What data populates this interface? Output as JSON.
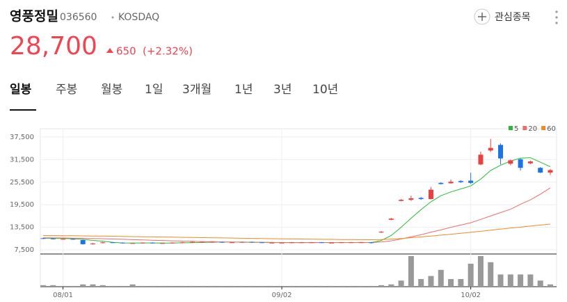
{
  "header": {
    "name": "영풍정밀",
    "code": "036560",
    "market": "KOSDAQ",
    "watch_button": "관심종목",
    "price": "28,700",
    "change": "650",
    "change_rate": "(+2.32%)"
  },
  "tabs": [
    "일봉",
    "주봉",
    "월봉",
    "1일",
    "3개월",
    "1년",
    "3년",
    "10년"
  ],
  "active_tab": 0,
  "chart_data": {
    "type": "candlestick",
    "up_color": "#e8413e",
    "down_color": "#1a73e8",
    "volume_color": "#999999",
    "grid": true,
    "categories": [
      null,
      null,
      "08/01",
      null,
      null,
      null,
      null,
      null,
      null,
      null,
      null,
      null,
      null,
      null,
      null,
      null,
      null,
      null,
      null,
      null,
      null,
      null,
      null,
      null,
      "09/02",
      null,
      null,
      null,
      null,
      null,
      null,
      null,
      null,
      null,
      null,
      null,
      null,
      null,
      null,
      null,
      null,
      null,
      null,
      "10/02",
      null,
      null,
      null,
      null,
      null,
      null,
      null,
      null
    ],
    "open": [
      10600,
      10500,
      10400,
      10400,
      10100,
      9000,
      9300,
      9500,
      9400,
      9300,
      9300,
      9400,
      9300,
      9300,
      9400,
      9500,
      9600,
      9600,
      9600,
      9500,
      9500,
      9600,
      9500,
      9400,
      9400,
      9400,
      9500,
      9500,
      9500,
      9400,
      9400,
      9500,
      9500,
      9500,
      12100,
      15500,
      20500,
      20800,
      21300,
      21000,
      25300,
      25200,
      25800,
      25900,
      30200,
      33900,
      35400,
      30400,
      31600,
      30500,
      29300,
      28050
    ],
    "high": [
      10700,
      10600,
      10500,
      10500,
      10200,
      9300,
      9600,
      9600,
      9500,
      9400,
      9500,
      9500,
      9400,
      9500,
      9600,
      9700,
      9700,
      9700,
      9700,
      9600,
      9700,
      9700,
      9600,
      9500,
      9500,
      9600,
      9600,
      9600,
      9600,
      9500,
      9600,
      9600,
      9600,
      9600,
      12500,
      16000,
      21000,
      21900,
      21600,
      24200,
      25500,
      26200,
      26000,
      28000,
      33600,
      37000,
      35800,
      31500,
      31800,
      31200,
      29500,
      29000
    ],
    "low": [
      10400,
      10300,
      10300,
      10200,
      8900,
      8900,
      9200,
      9300,
      9200,
      9200,
      9200,
      9200,
      9200,
      9200,
      9300,
      9400,
      9500,
      9500,
      9400,
      9400,
      9400,
      9400,
      9300,
      9300,
      9300,
      9300,
      9400,
      9400,
      9300,
      9300,
      9300,
      9400,
      9400,
      9200,
      12000,
      15400,
      20400,
      20500,
      20800,
      20900,
      24900,
      25100,
      25300,
      25000,
      30000,
      33500,
      30200,
      30000,
      28600,
      30300,
      27900,
      27400
    ],
    "close": [
      10500,
      10400,
      10400,
      10300,
      9000,
      9200,
      9500,
      9400,
      9300,
      9300,
      9400,
      9300,
      9300,
      9400,
      9500,
      9600,
      9600,
      9600,
      9500,
      9500,
      9600,
      9500,
      9400,
      9400,
      9400,
      9500,
      9500,
      9500,
      9400,
      9400,
      9500,
      9500,
      9500,
      9300,
      12300,
      15800,
      20800,
      21200,
      21000,
      23500,
      25000,
      25600,
      25500,
      25300,
      32800,
      34600,
      31800,
      31300,
      29300,
      31000,
      28050,
      28700
    ],
    "volume": [
      2,
      2,
      1,
      1,
      3,
      3,
      2,
      1,
      1,
      3,
      1,
      1,
      1,
      1,
      1,
      1,
      1,
      1,
      1,
      1,
      1,
      1,
      1,
      1,
      1,
      1,
      1,
      1,
      1,
      1,
      1,
      1,
      1,
      1,
      2,
      3,
      8,
      40,
      10,
      14,
      22,
      10,
      10,
      30,
      40,
      32,
      16,
      16,
      16,
      16,
      8,
      3
    ],
    "moving_averages": [
      {
        "name": "5",
        "color": "#22bb33",
        "values": [
          10600,
          10550,
          10500,
          10450,
          10300,
          10000,
          9800,
          9500,
          9350,
          9300,
          9350,
          9350,
          9330,
          9330,
          9380,
          9420,
          9480,
          9540,
          9560,
          9560,
          9560,
          9540,
          9500,
          9480,
          9440,
          9420,
          9440,
          9460,
          9460,
          9460,
          9460,
          9460,
          9480,
          9440,
          9980,
          11300,
          13500,
          15900,
          18200,
          20300,
          21900,
          22900,
          23700,
          24500,
          26300,
          28600,
          30000,
          31100,
          31900,
          32000,
          30800,
          29600
        ]
      },
      {
        "name": "20",
        "color": "#ee6b6b",
        "values": [
          10700,
          10680,
          10650,
          10620,
          10580,
          10520,
          10450,
          10380,
          10300,
          10220,
          10140,
          10060,
          9980,
          9900,
          9820,
          9760,
          9700,
          9650,
          9600,
          9560,
          9530,
          9510,
          9490,
          9470,
          9460,
          9450,
          9440,
          9440,
          9440,
          9440,
          9450,
          9460,
          9470,
          9460,
          9600,
          9900,
          10400,
          10950,
          11500,
          12200,
          12800,
          13500,
          14100,
          14700,
          15600,
          16500,
          17400,
          18300,
          19600,
          20800,
          22300,
          24000
        ]
      },
      {
        "name": "60",
        "color": "#f08a24",
        "values": [
          11300,
          11280,
          11260,
          11240,
          11210,
          11180,
          11150,
          11110,
          11070,
          11030,
          10990,
          10950,
          10910,
          10870,
          10830,
          10790,
          10750,
          10710,
          10670,
          10630,
          10590,
          10550,
          10510,
          10470,
          10430,
          10400,
          10370,
          10340,
          10310,
          10280,
          10250,
          10230,
          10210,
          10190,
          10250,
          10360,
          10520,
          10720,
          10940,
          11170,
          11410,
          11660,
          11900,
          12150,
          12440,
          12730,
          13000,
          13280,
          13550,
          13820,
          14080,
          14350
        ]
      }
    ],
    "ylim": [
      6400,
      39700
    ],
    "yticks": [
      {
        "value": 7500,
        "label": "7,500"
      },
      {
        "value": 13500,
        "label": "13,500"
      },
      {
        "value": 19500,
        "label": "19,500"
      },
      {
        "value": 25500,
        "label": "25,500"
      },
      {
        "value": 31500,
        "label": "31,500"
      },
      {
        "value": 37500,
        "label": "37,500"
      }
    ]
  }
}
